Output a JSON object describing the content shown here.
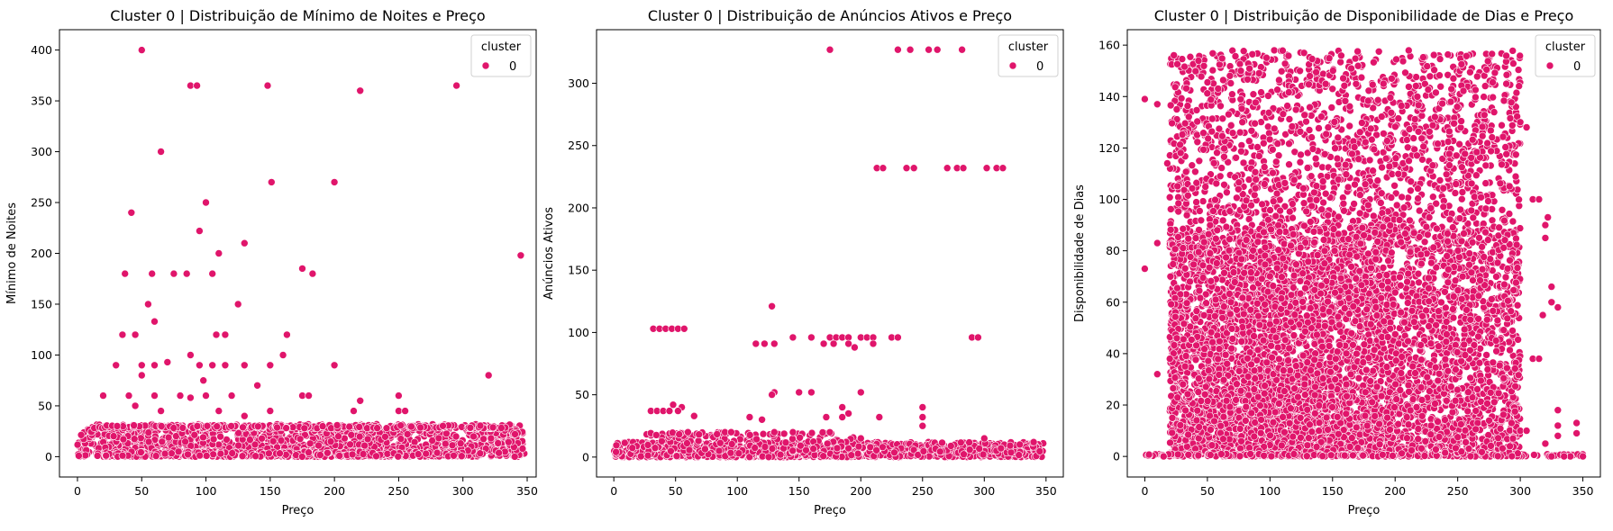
{
  "point_color": "#e0156b",
  "chart_data": [
    {
      "type": "scatter",
      "title": "Cluster 0 | Distribuição de Mínimo de Noites e Preço",
      "xlabel": "Preço",
      "ylabel": "Mínimo de Noites",
      "xlim": [
        -14,
        357
      ],
      "ylim": [
        -20,
        420
      ],
      "xticks": [
        0,
        50,
        100,
        150,
        200,
        250,
        300,
        350
      ],
      "yticks": [
        0,
        50,
        100,
        150,
        200,
        250,
        300,
        350,
        400
      ],
      "legend": {
        "title": "cluster",
        "label": "0",
        "placement": "top-right"
      },
      "series": [
        {
          "name": "0",
          "points": [
            [
              50,
              400
            ],
            [
              88,
              365
            ],
            [
              93,
              365
            ],
            [
              148,
              365
            ],
            [
              295,
              365
            ],
            [
              220,
              360
            ],
            [
              65,
              300
            ],
            [
              151,
              270
            ],
            [
              200,
              270
            ],
            [
              100,
              250
            ],
            [
              42,
              240
            ],
            [
              95,
              222
            ],
            [
              130,
              210
            ],
            [
              110,
              200
            ],
            [
              345,
              198
            ],
            [
              175,
              185
            ],
            [
              37,
              180
            ],
            [
              58,
              180
            ],
            [
              75,
              180
            ],
            [
              85,
              180
            ],
            [
              105,
              180
            ],
            [
              183,
              180
            ],
            [
              125,
              150
            ],
            [
              55,
              150
            ],
            [
              60,
              133
            ],
            [
              35,
              120
            ],
            [
              45,
              120
            ],
            [
              108,
              120
            ],
            [
              115,
              120
            ],
            [
              163,
              120
            ],
            [
              88,
              100
            ],
            [
              160,
              100
            ],
            [
              150,
              90
            ],
            [
              30,
              90
            ],
            [
              50,
              90
            ],
            [
              60,
              90
            ],
            [
              70,
              93
            ],
            [
              95,
              90
            ],
            [
              105,
              90
            ],
            [
              115,
              90
            ],
            [
              130,
              90
            ],
            [
              200,
              90
            ],
            [
              98,
              75
            ],
            [
              320,
              80
            ],
            [
              140,
              70
            ],
            [
              50,
              80
            ],
            [
              40,
              60
            ],
            [
              60,
              60
            ],
            [
              80,
              60
            ],
            [
              88,
              58
            ],
            [
              100,
              60
            ],
            [
              120,
              60
            ],
            [
              175,
              60
            ],
            [
              180,
              60
            ],
            [
              250,
              60
            ],
            [
              220,
              55
            ],
            [
              20,
              60
            ],
            [
              45,
              50
            ],
            [
              65,
              45
            ],
            [
              110,
              45
            ],
            [
              150,
              45
            ],
            [
              250,
              45
            ],
            [
              255,
              45
            ],
            [
              215,
              45
            ],
            [
              130,
              40
            ]
          ]
        }
      ],
      "dense_bands": [
        {
          "x_range": [
            0,
            348
          ],
          "y_range": [
            0,
            32
          ],
          "count": 1300
        },
        {
          "x_range": [
            15,
            330
          ],
          "y_range": [
            28,
            31
          ],
          "count": 220
        },
        {
          "x_range": [
            15,
            300
          ],
          "y_range": [
            0,
            5
          ],
          "count": 300
        }
      ]
    },
    {
      "type": "scatter",
      "title": "Cluster 0 | Distribuição de Anúncios Ativos e Preço",
      "xlabel": "Preço",
      "ylabel": "Anúncios Ativos",
      "xlim": [
        -14,
        364
      ],
      "ylim": [
        -16,
        343
      ],
      "xticks": [
        0,
        50,
        100,
        150,
        200,
        250,
        300,
        350
      ],
      "yticks": [
        0,
        50,
        100,
        150,
        200,
        250,
        300
      ],
      "legend": {
        "title": "cluster",
        "label": "0",
        "placement": "top-right"
      },
      "series": [
        {
          "name": "0",
          "points": [
            [
              175,
              327
            ],
            [
              230,
              327
            ],
            [
              240,
              327
            ],
            [
              255,
              327
            ],
            [
              262,
              327
            ],
            [
              282,
              327
            ],
            [
              213,
              232
            ],
            [
              218,
              232
            ],
            [
              237,
              232
            ],
            [
              243,
              232
            ],
            [
              270,
              232
            ],
            [
              278,
              232
            ],
            [
              283,
              232
            ],
            [
              302,
              232
            ],
            [
              310,
              232
            ],
            [
              315,
              232
            ],
            [
              128,
              121
            ],
            [
              32,
              103
            ],
            [
              37,
              103
            ],
            [
              42,
              103
            ],
            [
              47,
              103
            ],
            [
              52,
              103
            ],
            [
              57,
              103
            ],
            [
              145,
              96
            ],
            [
              160,
              96
            ],
            [
              175,
              96
            ],
            [
              180,
              96
            ],
            [
              185,
              96
            ],
            [
              190,
              96
            ],
            [
              200,
              96
            ],
            [
              205,
              96
            ],
            [
              210,
              96
            ],
            [
              225,
              96
            ],
            [
              230,
              96
            ],
            [
              290,
              96
            ],
            [
              295,
              96
            ],
            [
              115,
              91
            ],
            [
              122,
              91
            ],
            [
              130,
              91
            ],
            [
              170,
              91
            ],
            [
              178,
              91
            ],
            [
              190,
              91
            ],
            [
              195,
              88
            ],
            [
              210,
              91
            ],
            [
              200,
              52
            ],
            [
              130,
              52
            ],
            [
              128,
              50
            ],
            [
              150,
              52
            ],
            [
              160,
              52
            ],
            [
              250,
              40
            ],
            [
              250,
              32
            ],
            [
              215,
              32
            ],
            [
              185,
              32
            ],
            [
              185,
              40
            ],
            [
              48,
              42
            ],
            [
              55,
              40
            ],
            [
              30,
              37
            ],
            [
              35,
              37
            ],
            [
              40,
              37
            ],
            [
              45,
              37
            ],
            [
              52,
              37
            ],
            [
              65,
              33
            ],
            [
              110,
              32
            ],
            [
              120,
              30
            ],
            [
              172,
              32
            ],
            [
              190,
              35
            ],
            [
              145,
              20
            ],
            [
              130,
              20
            ],
            [
              200,
              15
            ],
            [
              300,
              15
            ],
            [
              340,
              12
            ],
            [
              90,
              20
            ],
            [
              95,
              20
            ],
            [
              60,
              20
            ],
            [
              250,
              25
            ]
          ]
        }
      ],
      "dense_bands": [
        {
          "x_range": [
            0,
            348
          ],
          "y_range": [
            0,
            12
          ],
          "count": 1100
        },
        {
          "x_range": [
            25,
            200
          ],
          "y_range": [
            0,
            20
          ],
          "count": 250
        }
      ]
    },
    {
      "type": "scatter",
      "title": "Cluster 0 | Distribuição de Disponibilidade de Dias e Preço",
      "xlabel": "Preço",
      "ylabel": "Disponibilidade de Dias",
      "xlim": [
        -14,
        364
      ],
      "ylim": [
        -8,
        166
      ],
      "xticks": [
        0,
        50,
        100,
        150,
        200,
        250,
        300,
        350
      ],
      "yticks": [
        0,
        20,
        40,
        60,
        80,
        100,
        120,
        140,
        160
      ],
      "legend": {
        "title": "cluster",
        "label": "0",
        "placement": "top-right"
      },
      "series": [
        {
          "name": "0",
          "points": [
            [
              0,
              139
            ],
            [
              0,
              73
            ],
            [
              10,
              137
            ],
            [
              10,
              83
            ],
            [
              10,
              32
            ],
            [
              15,
              0
            ],
            [
              18,
              114
            ],
            [
              20,
              38
            ],
            [
              22,
              15
            ],
            [
              300,
              130
            ],
            [
              305,
              128
            ],
            [
              310,
              100
            ],
            [
              315,
              100
            ],
            [
              320,
              85
            ],
            [
              325,
              66
            ],
            [
              325,
              60
            ],
            [
              330,
              58
            ],
            [
              322,
              93
            ],
            [
              320,
              90
            ],
            [
              310,
              38
            ],
            [
              315,
              38
            ],
            [
              318,
              55
            ],
            [
              330,
              18
            ],
            [
              330,
              12
            ],
            [
              330,
              8
            ],
            [
              345,
              13
            ],
            [
              345,
              9
            ],
            [
              350,
              0
            ],
            [
              340,
              0
            ],
            [
              335,
              0
            ],
            [
              293,
              13
            ],
            [
              300,
              10
            ],
            [
              305,
              10
            ],
            [
              320,
              5
            ],
            [
              325,
              0
            ]
          ]
        }
      ],
      "dense_bands": [
        {
          "x_range": [
            20,
            300
          ],
          "y_range": [
            0,
            158
          ],
          "count": 4200
        },
        {
          "x_range": [
            20,
            200
          ],
          "y_range": [
            0,
            90
          ],
          "count": 2600
        },
        {
          "x_range": [
            0,
            350
          ],
          "y_range": [
            0,
            1
          ],
          "count": 200
        },
        {
          "x_range": [
            200,
            300
          ],
          "y_range": [
            0,
            90
          ],
          "count": 600
        }
      ]
    }
  ]
}
